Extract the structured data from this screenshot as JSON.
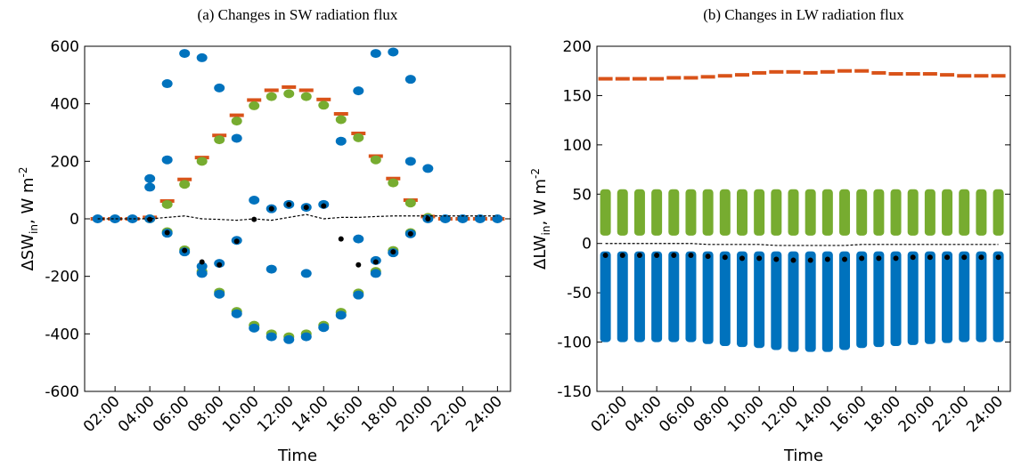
{
  "chart_data": [
    {
      "type": "scatter",
      "title": "(a) Changes in SW radiation flux",
      "xlabel": "Time",
      "ylabel": {
        "text": "ΔSW",
        "sub": "in",
        "rest": ", W m",
        "sup": "-2"
      },
      "xlim": [
        0.25,
        24.75
      ],
      "ylim": [
        -600,
        600
      ],
      "yticks": [
        -600,
        -400,
        -200,
        0,
        200,
        400,
        600
      ],
      "xticks": [
        {
          "value": 2,
          "label": "02:00"
        },
        {
          "value": 4,
          "label": "04:00"
        },
        {
          "value": 6,
          "label": "06:00"
        },
        {
          "value": 8,
          "label": "08:00"
        },
        {
          "value": 10,
          "label": "10:00"
        },
        {
          "value": 12,
          "label": "12:00"
        },
        {
          "value": 14,
          "label": "14:00"
        },
        {
          "value": 16,
          "label": "16:00"
        },
        {
          "value": 18,
          "label": "18:00"
        },
        {
          "value": 20,
          "label": "20:00"
        },
        {
          "value": 22,
          "label": "22:00"
        },
        {
          "value": 24,
          "label": "24:00"
        }
      ],
      "series": [
        {
          "color": "#d95319",
          "marker": "dash",
          "x": [
            1,
            2,
            3,
            4,
            5,
            6,
            7,
            8,
            9,
            10,
            11,
            12,
            13,
            14,
            15,
            16,
            17,
            18,
            19,
            20,
            21,
            22,
            23,
            24
          ],
          "values": [
            0,
            0,
            0,
            5,
            62,
            137,
            213,
            290,
            360,
            413,
            447,
            458,
            447,
            415,
            365,
            297,
            218,
            140,
            65,
            8,
            0,
            0,
            0,
            0
          ]
        },
        {
          "color": "#77ac30",
          "marker": "blob",
          "x": [
            4,
            5,
            6,
            7,
            8,
            9,
            10,
            11,
            12,
            13,
            14,
            15,
            16,
            17,
            18,
            19,
            20
          ],
          "values": [
            0,
            50,
            120,
            200,
            275,
            340,
            393,
            425,
            435,
            425,
            395,
            345,
            282,
            205,
            125,
            55,
            5
          ]
        },
        {
          "color": "#77ac30",
          "marker": "blob",
          "x": [
            5,
            6,
            7,
            8,
            9,
            10,
            11,
            12,
            13,
            14,
            15,
            16,
            17,
            18,
            19
          ],
          "values": [
            -45,
            -108,
            -183,
            -255,
            -322,
            -370,
            -400,
            -410,
            -400,
            -370,
            -325,
            -258,
            -183,
            -110,
            -48
          ]
        },
        {
          "color": "#0072bd",
          "marker": "blob",
          "x": [
            1,
            2,
            3,
            4,
            5,
            6,
            7,
            8,
            9,
            10,
            11,
            12,
            13,
            14,
            15,
            16,
            17,
            18,
            19,
            20,
            21,
            22,
            23,
            24,
            5,
            5,
            6,
            7,
            8,
            9,
            10,
            11,
            12,
            13,
            14,
            15,
            16,
            17,
            18,
            19,
            19,
            20,
            4,
            4,
            7,
            8,
            9,
            11,
            13,
            16,
            17
          ],
          "values": [
            0,
            0,
            0,
            0,
            -50,
            -115,
            -190,
            -262,
            -330,
            -380,
            -410,
            -420,
            -410,
            -378,
            -335,
            -265,
            -190,
            -118,
            -52,
            0,
            0,
            0,
            0,
            0,
            470,
            205,
            575,
            560,
            455,
            280,
            65,
            35,
            50,
            40,
            50,
            270,
            445,
            575,
            580,
            485,
            200,
            175,
            140,
            110,
            -165,
            -155,
            -75,
            -175,
            -190,
            -70,
            -145
          ]
        },
        {
          "color": "#000000",
          "marker": "dot",
          "x": [
            4,
            5,
            6,
            7,
            8,
            9,
            10,
            11,
            12,
            13,
            14,
            15,
            16,
            17,
            18,
            19,
            20
          ],
          "values": [
            -2,
            -48,
            -110,
            -150,
            -160,
            -78,
            -2,
            35,
            50,
            40,
            45,
            -70,
            -160,
            -150,
            -115,
            -52,
            0
          ]
        },
        {
          "color": "#000000",
          "marker": "line",
          "x": [
            1,
            2,
            3,
            4,
            5,
            6,
            7,
            8,
            9,
            10,
            11,
            12,
            13,
            14,
            15,
            16,
            17,
            18,
            19,
            20,
            21,
            22,
            23,
            24
          ],
          "values": [
            0,
            0,
            0,
            0,
            5,
            10,
            0,
            -2,
            -5,
            0,
            -5,
            5,
            15,
            0,
            5,
            5,
            8,
            10,
            10,
            10,
            10,
            10,
            10,
            10
          ]
        }
      ]
    },
    {
      "type": "scatter",
      "title": "(b) Changes in LW radiation flux",
      "xlabel": "Time",
      "ylabel": {
        "text": "ΔLW",
        "sub": "in",
        "rest": ", W m",
        "sup": "-2"
      },
      "xlim": [
        0.5,
        24.7
      ],
      "ylim": [
        -150,
        200
      ],
      "yticks": [
        -150,
        -100,
        -50,
        0,
        50,
        100,
        150,
        200
      ],
      "xticks": [
        {
          "value": 2,
          "label": "02:00"
        },
        {
          "value": 4,
          "label": "04:00"
        },
        {
          "value": 6,
          "label": "06:00"
        },
        {
          "value": 8,
          "label": "08:00"
        },
        {
          "value": 10,
          "label": "10:00"
        },
        {
          "value": 12,
          "label": "12:00"
        },
        {
          "value": 14,
          "label": "14:00"
        },
        {
          "value": 16,
          "label": "16:00"
        },
        {
          "value": 18,
          "label": "18:00"
        },
        {
          "value": 20,
          "label": "20:00"
        },
        {
          "value": 22,
          "label": "22:00"
        },
        {
          "value": 24,
          "label": "24:00"
        }
      ],
      "series": [
        {
          "color": "#d95319",
          "marker": "dash",
          "x": [
            1,
            2,
            3,
            4,
            5,
            6,
            7,
            8,
            9,
            10,
            11,
            12,
            13,
            14,
            15,
            16,
            17,
            18,
            19,
            20,
            21,
            22,
            23,
            24
          ],
          "values": [
            167,
            167,
            167,
            167,
            168,
            168,
            169,
            170,
            171,
            173,
            174,
            174,
            173,
            174,
            175,
            175,
            173,
            172,
            172,
            172,
            171,
            170,
            170,
            170
          ]
        },
        {
          "color": "#77ac30",
          "marker": "band",
          "x": [
            1,
            2,
            3,
            4,
            5,
            6,
            7,
            8,
            9,
            10,
            11,
            12,
            13,
            14,
            15,
            16,
            17,
            18,
            19,
            20,
            21,
            22,
            23,
            24
          ],
          "low": [
            8,
            8,
            8,
            8,
            8,
            8,
            8,
            8,
            8,
            8,
            8,
            8,
            8,
            8,
            8,
            8,
            8,
            8,
            8,
            8,
            8,
            8,
            8,
            8
          ],
          "high": [
            55,
            55,
            55,
            55,
            55,
            55,
            55,
            55,
            55,
            55,
            55,
            55,
            55,
            55,
            55,
            55,
            55,
            55,
            55,
            55,
            55,
            55,
            55,
            55
          ]
        },
        {
          "color": "#0072bd",
          "marker": "band",
          "x": [
            1,
            2,
            3,
            4,
            5,
            6,
            7,
            8,
            9,
            10,
            11,
            12,
            13,
            14,
            15,
            16,
            17,
            18,
            19,
            20,
            21,
            22,
            23,
            24
          ],
          "low": [
            -100,
            -100,
            -100,
            -100,
            -100,
            -100,
            -102,
            -104,
            -105,
            -106,
            -108,
            -110,
            -110,
            -110,
            -108,
            -106,
            -105,
            -104,
            -103,
            -102,
            -101,
            -100,
            -100,
            -100
          ],
          "high": [
            -8,
            -8,
            -8,
            -8,
            -8,
            -8,
            -8,
            -8,
            -8,
            -8,
            -8,
            -8,
            -8,
            -8,
            -8,
            -8,
            -8,
            -8,
            -8,
            -8,
            -8,
            -8,
            -8,
            -8
          ]
        },
        {
          "color": "#000000",
          "marker": "dot",
          "x": [
            1,
            2,
            3,
            4,
            5,
            6,
            7,
            8,
            9,
            10,
            11,
            12,
            13,
            14,
            15,
            16,
            17,
            18,
            19,
            20,
            21,
            22,
            23,
            24
          ],
          "values": [
            -12,
            -12,
            -12,
            -12,
            -12,
            -12,
            -13,
            -14,
            -15,
            -15,
            -16,
            -17,
            -17,
            -16,
            -16,
            -15,
            -15,
            -15,
            -14,
            -14,
            -14,
            -14,
            -14,
            -14
          ]
        },
        {
          "color": "#000000",
          "marker": "line",
          "x": [
            1,
            2,
            3,
            4,
            5,
            6,
            7,
            8,
            9,
            10,
            11,
            12,
            13,
            14,
            15,
            16,
            17,
            18,
            19,
            20,
            21,
            22,
            23,
            24
          ],
          "values": [
            0,
            0,
            0,
            0,
            0,
            0,
            -1,
            -1,
            -1,
            -1,
            -2,
            -2,
            -2,
            -2,
            -2,
            -1,
            -1,
            -1,
            -1,
            -1,
            -1,
            -1,
            -1,
            -1
          ]
        }
      ]
    }
  ]
}
